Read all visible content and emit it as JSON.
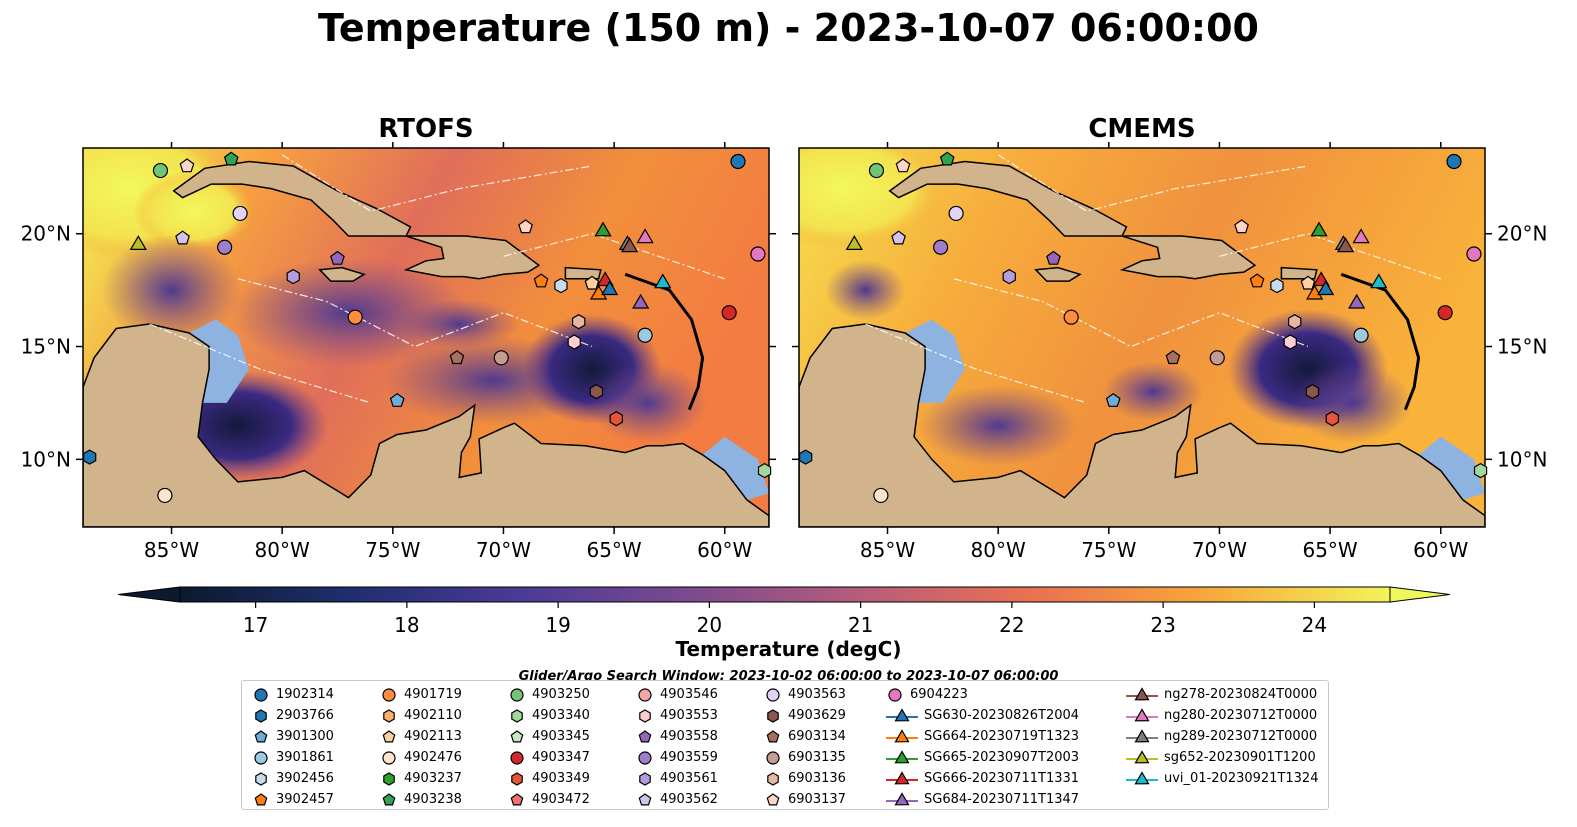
{
  "title": "Temperature (150 m) - 2023-10-07 06:00:00",
  "panels": [
    {
      "title": "RTOFS"
    },
    {
      "title": "CMEMS"
    }
  ],
  "axes": {
    "lon_ticks": [
      "85°W",
      "80°W",
      "75°W",
      "70°W",
      "65°W",
      "60°W"
    ],
    "lon_values": [
      -85,
      -80,
      -75,
      -70,
      -65,
      -60
    ],
    "lat_ticks": [
      "20°N",
      "15°N",
      "10°N"
    ],
    "lat_values": [
      20,
      15,
      10
    ],
    "lon_range": [
      -89,
      -58
    ],
    "lat_range": [
      7,
      23.8
    ]
  },
  "colorbar": {
    "label": "Temperature (degC)",
    "ticks": [
      "17",
      "18",
      "19",
      "20",
      "21",
      "22",
      "23",
      "24"
    ],
    "tick_values": [
      17,
      18,
      19,
      20,
      21,
      22,
      23,
      24
    ],
    "range": [
      16.5,
      24.5
    ],
    "extend": "both"
  },
  "window_note": "Glider/Argo Search Window: 2023-10-02 06:00:00 to 2023-10-07 06:00:00",
  "legend": {
    "columns": [
      [
        {
          "label": "1902314",
          "marker": "circle",
          "color": "#1f77b4"
        },
        {
          "label": "2903766",
          "marker": "hexagon",
          "color": "#1f77b4"
        },
        {
          "label": "3901300",
          "marker": "pentagon",
          "color": "#6baed6"
        },
        {
          "label": "3901861",
          "marker": "circle",
          "color": "#9ecae1"
        },
        {
          "label": "3902456",
          "marker": "hexagon",
          "color": "#c6dbef"
        },
        {
          "label": "3902457",
          "marker": "pentagon",
          "color": "#ff7f0e"
        }
      ],
      [
        {
          "label": "4901719",
          "marker": "circle",
          "color": "#fd8d3c"
        },
        {
          "label": "4902110",
          "marker": "hexagon",
          "color": "#fdae6b"
        },
        {
          "label": "4902113",
          "marker": "pentagon",
          "color": "#fdd0a2"
        },
        {
          "label": "4902476",
          "marker": "circle",
          "color": "#fee6ce"
        },
        {
          "label": "4903237",
          "marker": "hexagon",
          "color": "#2ca02c"
        },
        {
          "label": "4903238",
          "marker": "pentagon",
          "color": "#31a354"
        }
      ],
      [
        {
          "label": "4903250",
          "marker": "circle",
          "color": "#74c476"
        },
        {
          "label": "4903340",
          "marker": "hexagon",
          "color": "#a1d99b"
        },
        {
          "label": "4903345",
          "marker": "pentagon",
          "color": "#c7e9c0"
        },
        {
          "label": "4903347",
          "marker": "circle",
          "color": "#d62728"
        },
        {
          "label": "4903349",
          "marker": "hexagon",
          "color": "#e6553a"
        },
        {
          "label": "4903472",
          "marker": "pentagon",
          "color": "#f07070"
        }
      ],
      [
        {
          "label": "4903546",
          "marker": "circle",
          "color": "#f4a5a5"
        },
        {
          "label": "4903553",
          "marker": "hexagon",
          "color": "#fcd0d0"
        },
        {
          "label": "4903558",
          "marker": "pentagon",
          "color": "#9467bd"
        },
        {
          "label": "4903559",
          "marker": "circle",
          "color": "#9e7dcb"
        },
        {
          "label": "4903561",
          "marker": "hexagon",
          "color": "#b59ddb"
        },
        {
          "label": "4903562",
          "marker": "pentagon",
          "color": "#d2c3ec"
        }
      ],
      [
        {
          "label": "4903563",
          "marker": "circle",
          "color": "#e2d3f5"
        },
        {
          "label": "4903629",
          "marker": "hexagon",
          "color": "#8c564b"
        },
        {
          "label": "6903134",
          "marker": "pentagon",
          "color": "#a8715f"
        },
        {
          "label": "6903135",
          "marker": "circle",
          "color": "#c49c94"
        },
        {
          "label": "6903136",
          "marker": "hexagon",
          "color": "#e7b7a5"
        },
        {
          "label": "6903137",
          "marker": "pentagon",
          "color": "#fcd5c8"
        }
      ],
      [
        {
          "label": "6904223",
          "marker": "circle",
          "color": "#e377c2"
        },
        {
          "label": "SG630-20230826T2004",
          "marker": "triangle-line",
          "color": "#1f77b4"
        },
        {
          "label": "SG664-20230719T1323",
          "marker": "triangle-line",
          "color": "#ff7f0e"
        },
        {
          "label": "SG665-20230907T2003",
          "marker": "triangle-line",
          "color": "#2ca02c"
        },
        {
          "label": "SG666-20230711T1331",
          "marker": "triangle-line",
          "color": "#d62728"
        },
        {
          "label": "SG684-20230711T1347",
          "marker": "triangle-line",
          "color": "#9467bd"
        }
      ],
      [
        {
          "label": "ng278-20230824T0000",
          "marker": "triangle-line",
          "color": "#8c564b"
        },
        {
          "label": "ng280-20230712T0000",
          "marker": "triangle-line",
          "color": "#e377c2"
        },
        {
          "label": "ng289-20230712T0000",
          "marker": "triangle-line",
          "color": "#7f7f7f"
        },
        {
          "label": "sg652-20230901T1200",
          "marker": "triangle-line",
          "color": "#bcbd22"
        },
        {
          "label": "uvi_01-20230921T1324",
          "marker": "triangle-line",
          "color": "#17becf"
        }
      ]
    ]
  },
  "stations": [
    {
      "id": "1902314",
      "lon": -59.4,
      "lat": 23.2
    },
    {
      "id": "6904223",
      "lon": -58.5,
      "lat": 19.1
    },
    {
      "id": "4903347",
      "lon": -59.8,
      "lat": 16.5
    },
    {
      "id": "3901861",
      "lon": -63.6,
      "lat": 15.5
    },
    {
      "id": "4903340",
      "lon": -58.2,
      "lat": 9.5
    },
    {
      "id": "2903766",
      "lon": -88.7,
      "lat": 10.1
    },
    {
      "id": "4902476",
      "lon": -85.3,
      "lat": 8.4
    },
    {
      "id": "4903250",
      "lon": -85.5,
      "lat": 22.8
    },
    {
      "id": "6903137",
      "lon": -84.3,
      "lat": 23.0
    },
    {
      "id": "4903238",
      "lon": -82.3,
      "lat": 23.3
    },
    {
      "id": "4903563",
      "lon": -81.9,
      "lat": 20.9
    },
    {
      "id": "4903562",
      "lon": -84.5,
      "lat": 19.8
    },
    {
      "id": "4903559",
      "lon": -82.6,
      "lat": 19.4
    },
    {
      "id": "4903561",
      "lon": -79.5,
      "lat": 18.1
    },
    {
      "id": "4903558",
      "lon": -77.5,
      "lat": 18.9
    },
    {
      "id": "4901719",
      "lon": -76.7,
      "lat": 16.3
    },
    {
      "id": "6903137b",
      "lon": -69.0,
      "lat": 20.3
    },
    {
      "id": "4902113",
      "lon": -66.0,
      "lat": 17.8
    },
    {
      "id": "3902457",
      "lon": -68.3,
      "lat": 17.9
    },
    {
      "id": "3902456",
      "lon": -67.4,
      "lat": 17.7
    },
    {
      "id": "6903136",
      "lon": -66.6,
      "lat": 16.1
    },
    {
      "id": "4903553",
      "lon": -66.8,
      "lat": 15.2
    },
    {
      "id": "6903134",
      "lon": -72.1,
      "lat": 14.5
    },
    {
      "id": "6903135",
      "lon": -70.1,
      "lat": 14.5
    },
    {
      "id": "3901300",
      "lon": -74.8,
      "lat": 12.6
    },
    {
      "id": "4903629",
      "lon": -65.8,
      "lat": 13.0
    },
    {
      "id": "4903349",
      "lon": -64.9,
      "lat": 11.8
    }
  ],
  "gliders": [
    {
      "id": "sg652-20230901T1200",
      "lon": -86.5,
      "lat": 19.5
    },
    {
      "id": "SG665-20230907T2003",
      "lon": -65.5,
      "lat": 20.1
    },
    {
      "id": "ng289-20230712T0000",
      "lon": -64.4,
      "lat": 19.5
    },
    {
      "id": "ng280-20230712T0000",
      "lon": -63.6,
      "lat": 19.8
    },
    {
      "id": "SG664-20230719T1323",
      "lon": -65.7,
      "lat": 17.3
    },
    {
      "id": "SG666-20230711T1331",
      "lon": -65.4,
      "lat": 17.9
    },
    {
      "id": "SG630-20230826T2004",
      "lon": -65.2,
      "lat": 17.5
    },
    {
      "id": "SG684-20230711T1347",
      "lon": -63.8,
      "lat": 16.9
    },
    {
      "id": "uvi_01-20230921T1324",
      "lon": -62.8,
      "lat": 17.8
    },
    {
      "id": "ng278-20230824T0000",
      "lon": -64.3,
      "lat": 19.4
    }
  ]
}
